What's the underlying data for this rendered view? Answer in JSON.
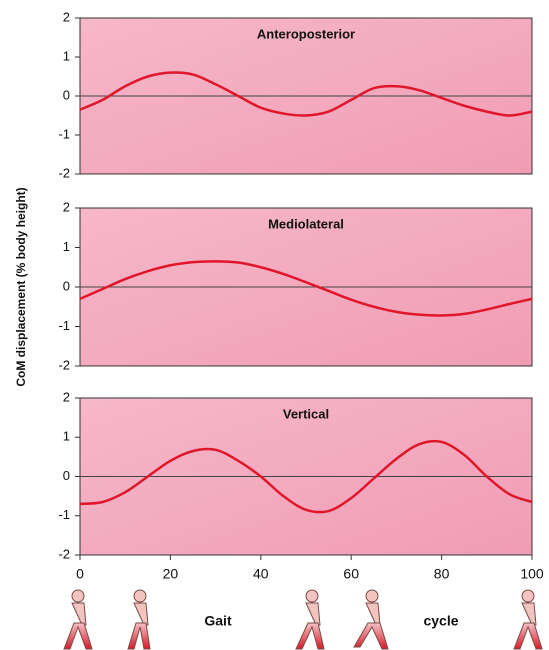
{
  "chart_data": [
    {
      "type": "line",
      "title": "Anteroposterior",
      "x": [
        0,
        5,
        10,
        15,
        20,
        25,
        30,
        35,
        40,
        45,
        50,
        55,
        60,
        65,
        70,
        75,
        80,
        85,
        90,
        95,
        100
      ],
      "values": [
        -0.35,
        -0.1,
        0.25,
        0.5,
        0.6,
        0.55,
        0.3,
        0.0,
        -0.3,
        -0.45,
        -0.5,
        -0.4,
        -0.1,
        0.2,
        0.25,
        0.15,
        -0.05,
        -0.25,
        -0.4,
        -0.5,
        -0.4
      ],
      "color": "#e0162b",
      "xlim": [
        0,
        100
      ],
      "ylim": [
        -2,
        2
      ],
      "yticks": [
        -2,
        -1,
        0,
        1,
        2
      ]
    },
    {
      "type": "line",
      "title": "Mediolateral",
      "ylabel": "CoM displacement (% body height)",
      "x": [
        0,
        5,
        10,
        15,
        20,
        25,
        30,
        35,
        40,
        45,
        50,
        55,
        60,
        65,
        70,
        75,
        80,
        85,
        90,
        95,
        100
      ],
      "values": [
        -0.3,
        -0.05,
        0.2,
        0.4,
        0.55,
        0.63,
        0.65,
        0.62,
        0.5,
        0.33,
        0.12,
        -0.1,
        -0.32,
        -0.5,
        -0.63,
        -0.7,
        -0.72,
        -0.68,
        -0.57,
        -0.43,
        -0.3
      ],
      "color": "#e0162b",
      "xlim": [
        0,
        100
      ],
      "ylim": [
        -2,
        2
      ],
      "yticks": [
        -2,
        -1,
        0,
        1,
        2
      ]
    },
    {
      "type": "line",
      "title": "Vertical",
      "xlabel": [
        "Gait",
        "cycle"
      ],
      "x": [
        0,
        5,
        10,
        15,
        20,
        25,
        30,
        35,
        40,
        45,
        50,
        55,
        60,
        65,
        70,
        75,
        80,
        85,
        90,
        95,
        100
      ],
      "values": [
        -0.7,
        -0.65,
        -0.4,
        0.0,
        0.4,
        0.65,
        0.68,
        0.4,
        0.0,
        -0.5,
        -0.85,
        -0.88,
        -0.55,
        -0.05,
        0.45,
        0.82,
        0.88,
        0.55,
        0.0,
        -0.45,
        -0.65
      ],
      "color": "#e0162b",
      "xlim": [
        0,
        100
      ],
      "xticks": [
        0,
        20,
        40,
        60,
        80,
        100
      ],
      "ylim": [
        -2,
        2
      ],
      "yticks": [
        -2,
        -1,
        0,
        1,
        2
      ]
    }
  ]
}
